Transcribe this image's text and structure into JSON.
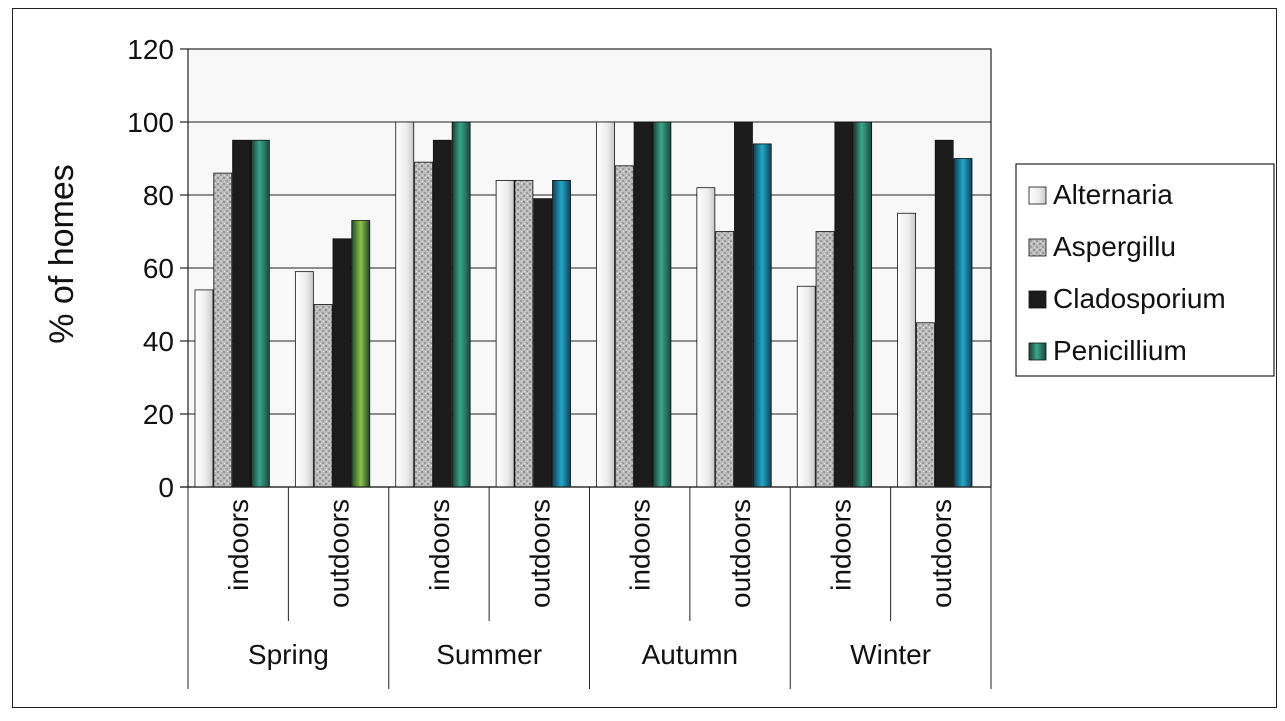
{
  "chart_data": {
    "type": "bar",
    "title": "",
    "xlabel": "",
    "ylabel": "% of homes",
    "ylim": [
      0,
      120
    ],
    "yticks": [
      0,
      20,
      40,
      60,
      80,
      100,
      120
    ],
    "grid": true,
    "legend_position": "right",
    "groups": [
      {
        "label": "Spring",
        "subcategories": [
          "indoors",
          "outdoors"
        ]
      },
      {
        "label": "Summer",
        "subcategories": [
          "indoors",
          "outdoors"
        ]
      },
      {
        "label": "Autumn",
        "subcategories": [
          "indoors",
          "outdoors"
        ]
      },
      {
        "label": "Winter",
        "subcategories": [
          "indoors",
          "outdoors"
        ]
      }
    ],
    "categories": [
      "indoors",
      "outdoors",
      "indoors",
      "outdoors",
      "indoors",
      "outdoors",
      "indoors",
      "outdoors"
    ],
    "series": [
      {
        "name": "Alternaria",
        "values": [
          54,
          59,
          100,
          84,
          100,
          82,
          55,
          75
        ]
      },
      {
        "name": "Aspergillu",
        "values": [
          86,
          50,
          89,
          84,
          88,
          70,
          70,
          45
        ]
      },
      {
        "name": "Cladosporium",
        "values": [
          95,
          68,
          95,
          79,
          100,
          100,
          100,
          95
        ]
      },
      {
        "name": "Penicillium",
        "values": [
          95,
          73,
          100,
          84,
          100,
          94,
          100,
          90
        ]
      }
    ],
    "colors": {
      "plot_background": "#f8f8f8",
      "Alternaria": "#eeeeee",
      "Aspergillu": "#b4b4b4",
      "Cladosporium": "#1c1c1c",
      "Penicillium": "#2e8a78"
    }
  }
}
